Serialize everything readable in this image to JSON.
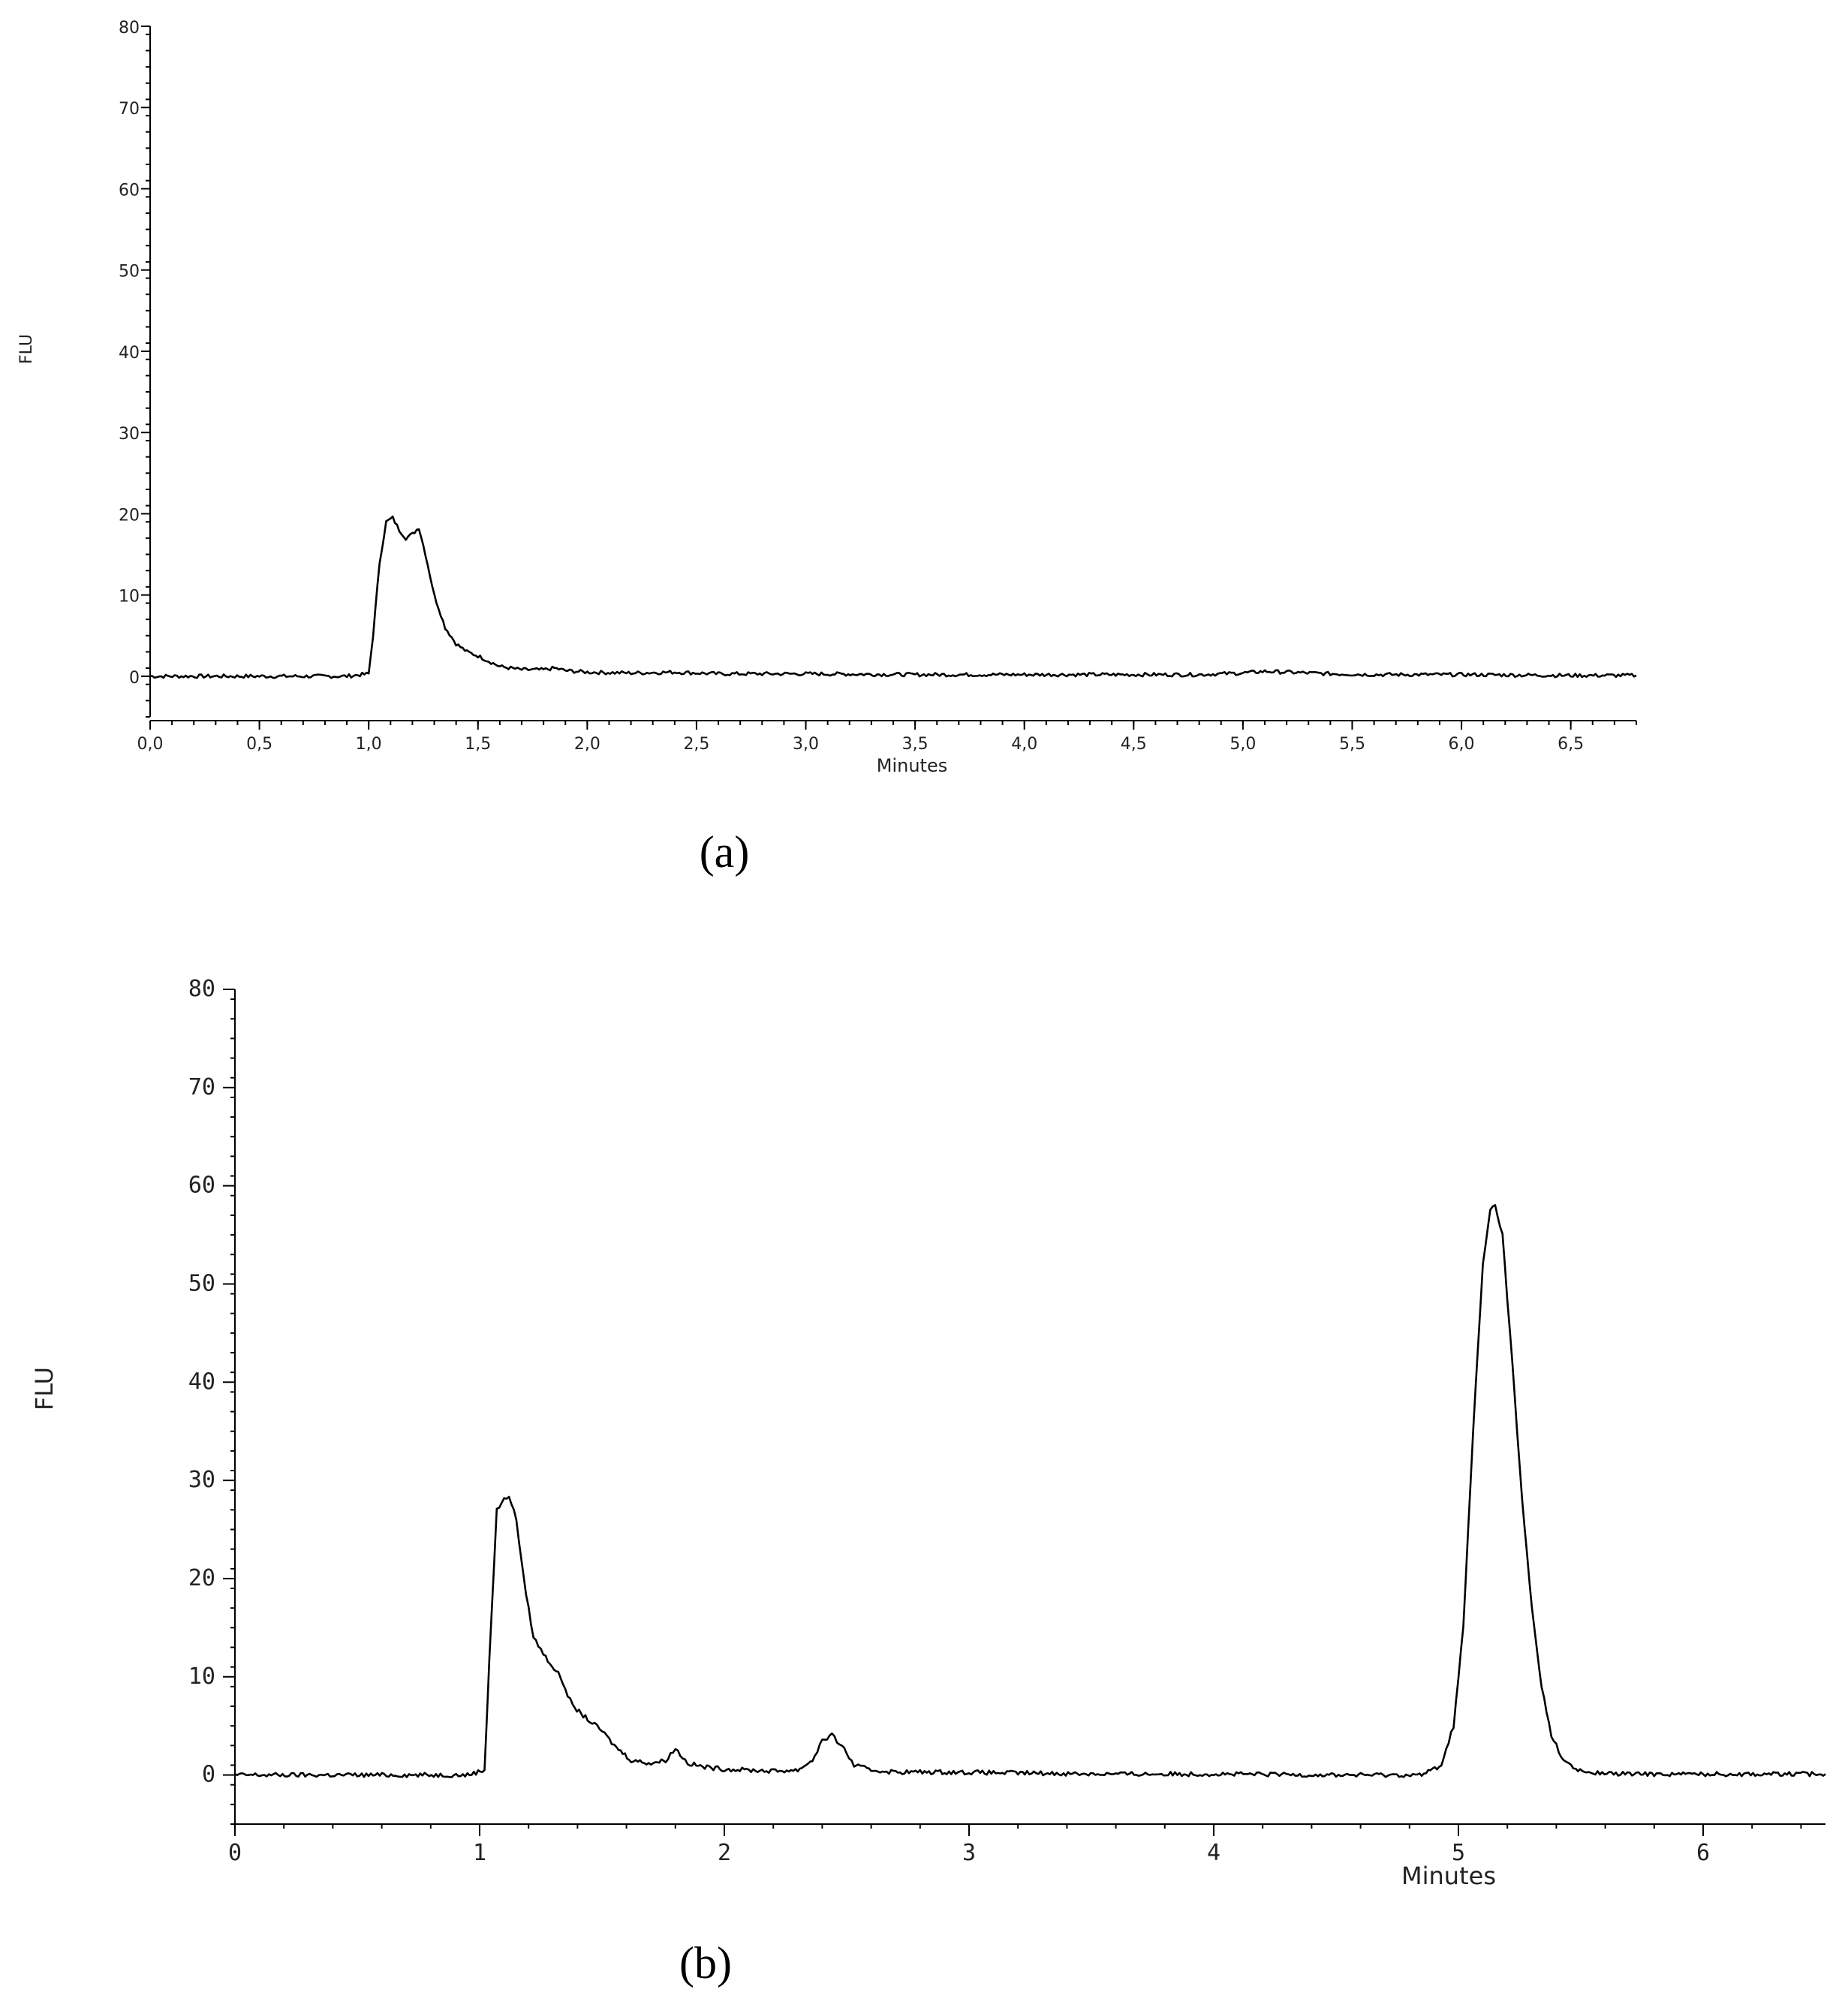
{
  "chart_data": [
    {
      "type": "line",
      "panel_label": "(a)",
      "xlabel": "Minutes",
      "ylabel": "FLU",
      "xlim": [
        0,
        6.8
      ],
      "ylim": [
        -5,
        80
      ],
      "x_ticks": [
        0,
        0.5,
        1.0,
        1.5,
        2.0,
        2.5,
        3.0,
        3.5,
        4.0,
        4.5,
        5.0,
        5.5,
        6.0,
        6.5
      ],
      "x_tick_labels": [
        "0,0",
        "0,5",
        "1,0",
        "1,5",
        "2,0",
        "2,5",
        "3,0",
        "3,5",
        "4,0",
        "4,5",
        "5,0",
        "5,5",
        "6,0",
        "6,5"
      ],
      "y_ticks": [
        0,
        10,
        20,
        30,
        40,
        50,
        60,
        70,
        80
      ],
      "y_tick_labels": [
        "0",
        "10",
        "20",
        "30",
        "40",
        "50",
        "60",
        "70",
        "80"
      ],
      "grid": false,
      "series": [
        {
          "x": [
            0.0,
            0.5,
            0.9,
            1.0,
            1.02,
            1.05,
            1.08,
            1.11,
            1.14,
            1.17,
            1.2,
            1.23,
            1.26,
            1.3,
            1.35,
            1.4,
            1.45,
            1.5,
            1.6,
            1.7,
            1.8,
            1.85,
            1.9,
            2.0,
            2.2,
            2.4,
            2.6,
            2.8,
            3.0,
            3.5,
            4.0,
            4.5,
            4.8,
            5.0,
            5.1,
            5.2,
            5.4,
            5.6,
            6.0,
            6.5,
            6.8
          ],
          "y": [
            0,
            0,
            0,
            0.3,
            5,
            14,
            19,
            19.5,
            18,
            17,
            17.5,
            18.3,
            15,
            10,
            6,
            4,
            3,
            2.5,
            1.2,
            0.8,
            0.8,
            1,
            0.7,
            0.5,
            0.4,
            0.5,
            0.3,
            0.3,
            0.3,
            0.2,
            0.2,
            0.2,
            0.2,
            0.4,
            0.6,
            0.5,
            0.3,
            0.2,
            0.2,
            0.1,
            0.1
          ]
        }
      ]
    },
    {
      "type": "line",
      "panel_label": "(b)",
      "xlabel": "Minutes",
      "ylabel": "FLU",
      "xlim": [
        0,
        6.5
      ],
      "ylim": [
        -5,
        80
      ],
      "x_ticks": [
        0,
        1,
        2,
        3,
        4,
        5,
        6
      ],
      "x_tick_labels": [
        "0",
        "1",
        "2",
        "3",
        "4",
        "5",
        "6"
      ],
      "y_ticks": [
        0,
        10,
        20,
        30,
        40,
        50,
        60,
        70,
        80
      ],
      "y_tick_labels": [
        "0",
        "10",
        "20",
        "30",
        "40",
        "50",
        "60",
        "70",
        "80"
      ],
      "grid": false,
      "series": [
        {
          "x": [
            0.0,
            0.5,
            0.95,
            1.02,
            1.04,
            1.07,
            1.1,
            1.12,
            1.15,
            1.18,
            1.22,
            1.27,
            1.33,
            1.38,
            1.45,
            1.5,
            1.55,
            1.62,
            1.7,
            1.76,
            1.8,
            1.85,
            1.92,
            2.0,
            2.2,
            2.3,
            2.36,
            2.4,
            2.44,
            2.48,
            2.53,
            2.6,
            2.7,
            2.9,
            3.2,
            3.6,
            4.0,
            4.5,
            4.85,
            4.93,
            4.98,
            5.02,
            5.06,
            5.1,
            5.13,
            5.15,
            5.18,
            5.22,
            5.26,
            5.3,
            5.34,
            5.38,
            5.43,
            5.48,
            5.55,
            5.7,
            6.0,
            6.5
          ],
          "y": [
            0,
            0,
            0,
            0.5,
            12,
            27,
            28,
            28.5,
            26,
            20,
            14,
            12,
            10,
            7,
            5.5,
            4.5,
            3,
            1.5,
            1.2,
            1.5,
            2.7,
            1.2,
            0.8,
            0.6,
            0.4,
            0.5,
            1.5,
            3.5,
            4,
            3,
            1,
            0.5,
            0.3,
            0.3,
            0.2,
            0.1,
            0.1,
            0,
            0,
            1,
            5,
            15,
            35,
            52,
            57.5,
            58,
            55,
            42,
            28,
            17,
            9,
            4,
            1.5,
            0.5,
            0.2,
            0.1,
            0.1,
            0.1
          ]
        }
      ]
    }
  ]
}
